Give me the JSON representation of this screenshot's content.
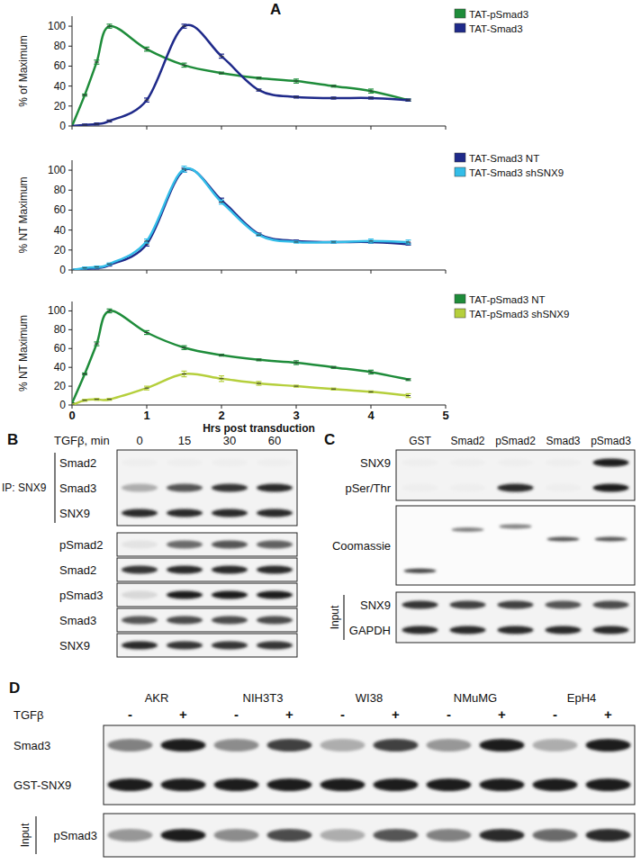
{
  "panel_labels": [
    "A",
    "B",
    "C",
    "D"
  ],
  "chart_data": [
    {
      "type": "line",
      "y_label": "% of Maximum",
      "x": [
        0,
        0.17,
        0.33,
        0.5,
        1,
        1.5,
        2,
        2.5,
        3,
        3.5,
        4,
        4.5
      ],
      "xlim": [
        0,
        5
      ],
      "xticks": [
        0,
        1,
        2,
        3,
        4,
        5
      ],
      "ylim": [
        0,
        110
      ],
      "yticks": [
        0,
        20,
        40,
        60,
        80,
        100
      ],
      "tick_labels": "y",
      "legend": "upper right",
      "series": [
        {
          "name": "TAT-pSmad3",
          "color": "#1e8c3a",
          "values": [
            0,
            31,
            64,
            100,
            77,
            61,
            53,
            48,
            45,
            40,
            35,
            26
          ],
          "errors": [
            0,
            1,
            2,
            2,
            2,
            2,
            1,
            1,
            2,
            1,
            2,
            1
          ]
        },
        {
          "name": "TAT-Smad3",
          "color": "#1f2a8a",
          "values": [
            0,
            1,
            2,
            5,
            26,
            100,
            70,
            36,
            29,
            28,
            28,
            26
          ],
          "errors": [
            0,
            1,
            1,
            1,
            2,
            2,
            2,
            1,
            1,
            1,
            1,
            1
          ]
        }
      ]
    },
    {
      "type": "line",
      "y_label": "% NT Maximum",
      "x": [
        0,
        0.17,
        0.33,
        0.5,
        1,
        1.5,
        2,
        2.5,
        3,
        3.5,
        4,
        4.5
      ],
      "xlim": [
        0,
        5
      ],
      "xticks": [
        0,
        1,
        2,
        3,
        4,
        5
      ],
      "ylim": [
        0,
        110
      ],
      "yticks": [
        0,
        20,
        40,
        60,
        80,
        100
      ],
      "tick_labels": "y",
      "legend": "upper right",
      "series": [
        {
          "name": "TAT-Smad3 NT",
          "color": "#1f2a8a",
          "values": [
            0,
            1,
            2,
            5,
            26,
            100,
            70,
            36,
            29,
            28,
            28,
            26
          ],
          "errors": [
            0,
            1,
            1,
            1,
            2,
            2,
            2,
            1,
            1,
            1,
            1,
            1
          ]
        },
        {
          "name": "TAT-Smad3 shSNX9",
          "color": "#33bde8",
          "values": [
            0,
            2,
            3,
            6,
            29,
            101,
            68,
            35,
            28,
            28,
            29,
            28
          ],
          "errors": [
            0,
            1,
            1,
            1,
            2,
            3,
            2,
            1,
            1,
            1,
            2,
            2
          ]
        }
      ]
    },
    {
      "type": "line",
      "y_label": "% NT Maximum",
      "x_label": "Hrs post transduction",
      "x": [
        0,
        0.17,
        0.33,
        0.5,
        1,
        1.5,
        2,
        2.5,
        3,
        3.5,
        4,
        4.5
      ],
      "xlim": [
        0,
        5
      ],
      "xticks": [
        0,
        1,
        2,
        3,
        4,
        5
      ],
      "ylim": [
        0,
        110
      ],
      "yticks": [
        0,
        20,
        40,
        60,
        80,
        100
      ],
      "legend": "upper right",
      "series": [
        {
          "name": "TAT-pSmad3 NT",
          "color": "#1e8c3a",
          "values": [
            2,
            33,
            65,
            100,
            77,
            61,
            53,
            48,
            45,
            40,
            35,
            27
          ],
          "errors": [
            0,
            1,
            2,
            2,
            2,
            2,
            1,
            1,
            2,
            1,
            2,
            1
          ]
        },
        {
          "name": "TAT-pSmad3 shSNX9",
          "color": "#b5cf3c",
          "values": [
            0,
            5,
            6,
            6,
            18,
            33,
            28,
            23,
            20,
            17,
            14,
            10
          ],
          "errors": [
            0,
            1,
            1,
            1,
            2,
            3,
            3,
            2,
            1,
            1,
            1,
            2
          ]
        }
      ]
    }
  ],
  "blot_b": {
    "header_label": "TGFβ, min",
    "lanes": [
      "0",
      "15",
      "30",
      "60"
    ],
    "ip_label": "IP: SNX9",
    "ip_rows": [
      {
        "label": "Smad2",
        "bands": [
          0,
          0,
          0,
          0
        ]
      },
      {
        "label": "Smad3",
        "bands": [
          0.3,
          0.7,
          0.85,
          0.9
        ]
      },
      {
        "label": "SNX9",
        "bands": [
          0.9,
          0.9,
          0.9,
          0.9
        ]
      }
    ],
    "rows": [
      {
        "label": "pSmad2",
        "bands": [
          0.05,
          0.6,
          0.7,
          0.65
        ]
      },
      {
        "label": "Smad2",
        "bands": [
          0.85,
          0.9,
          0.9,
          0.9
        ]
      },
      {
        "label": "pSmad3",
        "bands": [
          0.1,
          0.95,
          0.95,
          0.95
        ]
      },
      {
        "label": "Smad3",
        "bands": [
          0.7,
          0.75,
          0.75,
          0.75
        ]
      },
      {
        "label": "SNX9",
        "bands": [
          0.9,
          0.85,
          0.85,
          0.85
        ]
      }
    ]
  },
  "blot_c": {
    "lanes": [
      "GST",
      "Smad2",
      "pSmad2",
      "Smad3",
      "pSmad3"
    ],
    "rows": [
      {
        "label": "SNX9",
        "bands": [
          0,
          0,
          0,
          0,
          0.95
        ]
      },
      {
        "label": "pSer/Thr",
        "bands": [
          0,
          0,
          0.9,
          0,
          0.95
        ]
      }
    ],
    "stain_row": {
      "label": "Coomassie",
      "bands": [
        0.8,
        0.5,
        0.5,
        0.7,
        0.7
      ]
    },
    "input_label": "Input",
    "input_rows": [
      {
        "label": "SNX9",
        "bands": [
          0.85,
          0.8,
          0.8,
          0.7,
          0.75
        ]
      },
      {
        "label": "GAPDH",
        "bands": [
          0.9,
          0.9,
          0.9,
          0.9,
          0.9
        ]
      }
    ]
  },
  "blot_d": {
    "groups": [
      "AKR",
      "NIH3T3",
      "WI38",
      "NMuMG",
      "EpH4"
    ],
    "treatment_label": "TGFβ",
    "treatments": [
      "-",
      "+"
    ],
    "rows": [
      {
        "label": "Smad3",
        "bands": [
          0.5,
          0.95,
          0.45,
          0.8,
          0.3,
          0.8,
          0.4,
          0.95,
          0.3,
          0.95
        ]
      },
      {
        "label": "GST-SNX9",
        "bands": [
          0.95,
          0.95,
          0.95,
          0.95,
          0.95,
          0.95,
          0.95,
          0.95,
          0.95,
          0.95
        ]
      }
    ],
    "input_label": "Input",
    "input_rows": [
      {
        "label": "pSmad3",
        "bands": [
          0.4,
          0.95,
          0.45,
          0.75,
          0.3,
          0.7,
          0.5,
          0.9,
          0.6,
          0.9
        ]
      }
    ]
  }
}
